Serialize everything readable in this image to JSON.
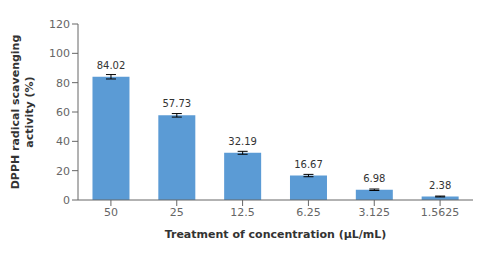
{
  "chart_data": {
    "type": "bar",
    "categories": [
      "50",
      "25",
      "12.5",
      "6.25",
      "3.125",
      "1.5625"
    ],
    "values": [
      84.02,
      57.73,
      32.19,
      16.67,
      6.98,
      2.38
    ],
    "errors": [
      1.5,
      1.2,
      1.0,
      0.8,
      0.5,
      0.3
    ],
    "color": "#5B9BD5",
    "xlabel": "Treatment of concentration (μL/mL)",
    "ylabel": "DPPH radical scavenging\nactivity (%)",
    "ylim": [
      0,
      120
    ],
    "yticks": [
      0,
      20,
      40,
      60,
      80,
      100,
      120
    ],
    "data_labels": true,
    "grid": false
  }
}
